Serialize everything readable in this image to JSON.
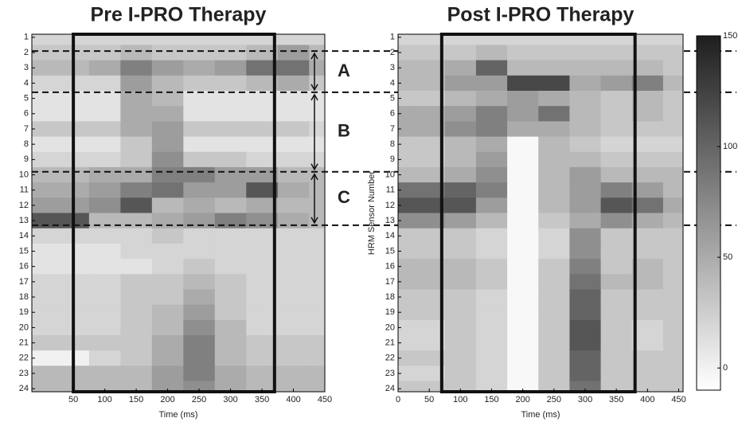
{
  "chart_data": [
    {
      "type": "heatmap",
      "title": "Pre I-PRO Therapy",
      "xlabel": "Time (ms)",
      "x": [
        0,
        50,
        100,
        150,
        200,
        250,
        300,
        350,
        400,
        450
      ],
      "y": [
        1,
        2,
        3,
        4,
        5,
        6,
        7,
        8,
        9,
        10,
        11,
        12,
        13,
        14,
        15,
        16,
        17,
        18,
        19,
        20,
        21,
        22,
        23,
        24
      ],
      "z": [
        [
          20,
          20,
          20,
          20,
          20,
          20,
          20,
          20,
          20,
          20
        ],
        [
          30,
          30,
          30,
          40,
          30,
          30,
          30,
          40,
          60,
          40
        ],
        [
          40,
          40,
          50,
          80,
          60,
          50,
          60,
          90,
          90,
          50
        ],
        [
          20,
          20,
          20,
          60,
          40,
          30,
          30,
          40,
          50,
          30
        ],
        [
          10,
          10,
          10,
          50,
          40,
          10,
          10,
          10,
          10,
          10
        ],
        [
          10,
          10,
          10,
          50,
          50,
          10,
          10,
          10,
          10,
          10
        ],
        [
          30,
          30,
          30,
          50,
          60,
          30,
          30,
          30,
          30,
          20
        ],
        [
          10,
          10,
          10,
          30,
          60,
          10,
          10,
          10,
          10,
          10
        ],
        [
          20,
          20,
          20,
          30,
          70,
          30,
          30,
          20,
          20,
          20
        ],
        [
          40,
          40,
          50,
          50,
          80,
          80,
          60,
          60,
          40,
          40
        ],
        [
          50,
          50,
          60,
          80,
          90,
          60,
          60,
          110,
          50,
          40
        ],
        [
          60,
          60,
          70,
          110,
          40,
          50,
          40,
          50,
          40,
          40
        ],
        [
          110,
          110,
          40,
          40,
          50,
          60,
          80,
          70,
          50,
          40
        ],
        [
          20,
          20,
          20,
          20,
          30,
          20,
          20,
          20,
          20,
          20
        ],
        [
          10,
          10,
          10,
          20,
          20,
          20,
          20,
          20,
          20,
          20
        ],
        [
          10,
          10,
          10,
          10,
          20,
          30,
          20,
          20,
          20,
          20
        ],
        [
          20,
          20,
          20,
          30,
          30,
          40,
          30,
          20,
          20,
          20
        ],
        [
          20,
          20,
          20,
          30,
          30,
          50,
          30,
          20,
          20,
          20
        ],
        [
          20,
          20,
          20,
          30,
          40,
          60,
          30,
          20,
          20,
          20
        ],
        [
          20,
          20,
          20,
          30,
          40,
          70,
          40,
          20,
          20,
          20
        ],
        [
          30,
          30,
          30,
          30,
          50,
          80,
          40,
          30,
          30,
          30
        ],
        [
          0,
          0,
          20,
          30,
          50,
          80,
          40,
          30,
          30,
          30
        ],
        [
          40,
          40,
          40,
          40,
          60,
          80,
          50,
          40,
          40,
          40
        ],
        [
          40,
          40,
          40,
          40,
          60,
          70,
          50,
          40,
          40,
          40
        ]
      ],
      "xlim": [
        -16,
        450
      ],
      "xticks": [
        50,
        100,
        150,
        200,
        250,
        300,
        350,
        400,
        450
      ],
      "ylim": [
        24.2,
        0.8
      ],
      "yticks": [
        1,
        2,
        3,
        4,
        5,
        6,
        7,
        8,
        9,
        10,
        11,
        12,
        13,
        14,
        15,
        16,
        17,
        18,
        19,
        20,
        21,
        22,
        23,
        24
      ],
      "box": [
        50,
        370
      ],
      "hlines": [
        1.9,
        4.6,
        9.8,
        13.3
      ],
      "brackets": [
        {
          "label": "A",
          "range": [
            1.9,
            4.6
          ]
        },
        {
          "label": "B",
          "range": [
            4.6,
            9.8
          ]
        },
        {
          "label": "C",
          "range": [
            9.8,
            13.3
          ]
        }
      ]
    },
    {
      "type": "heatmap",
      "title": "Post I-PRO Therapy",
      "xlabel": "Time (ms)",
      "ylabel": "HRM Sensor Number",
      "x": [
        0,
        50,
        100,
        150,
        200,
        250,
        300,
        350,
        400,
        450
      ],
      "y": [
        1,
        2,
        3,
        4,
        5,
        6,
        7,
        8,
        9,
        10,
        11,
        12,
        13,
        14,
        15,
        16,
        17,
        18,
        19,
        20,
        21,
        22,
        23,
        24
      ],
      "z": [
        [
          20,
          20,
          20,
          20,
          20,
          20,
          20,
          20,
          20,
          20
        ],
        [
          30,
          30,
          30,
          40,
          30,
          30,
          30,
          30,
          30,
          30
        ],
        [
          40,
          40,
          50,
          100,
          40,
          40,
          40,
          40,
          40,
          30
        ],
        [
          40,
          40,
          60,
          60,
          120,
          120,
          50,
          60,
          80,
          40
        ],
        [
          30,
          30,
          40,
          50,
          60,
          50,
          40,
          30,
          40,
          30
        ],
        [
          50,
          50,
          60,
          80,
          60,
          90,
          40,
          30,
          40,
          30
        ],
        [
          50,
          50,
          70,
          80,
          50,
          50,
          40,
          30,
          30,
          30
        ],
        [
          30,
          30,
          40,
          50,
          -5,
          40,
          30,
          20,
          20,
          20
        ],
        [
          30,
          30,
          40,
          60,
          -5,
          40,
          40,
          30,
          30,
          30
        ],
        [
          40,
          40,
          50,
          70,
          -5,
          40,
          60,
          40,
          40,
          40
        ],
        [
          90,
          90,
          100,
          80,
          -5,
          40,
          60,
          80,
          60,
          40
        ],
        [
          110,
          110,
          110,
          60,
          -5,
          40,
          60,
          110,
          90,
          50
        ],
        [
          70,
          70,
          60,
          40,
          -5,
          30,
          50,
          70,
          50,
          40
        ],
        [
          30,
          30,
          30,
          20,
          -5,
          20,
          70,
          30,
          30,
          30
        ],
        [
          30,
          30,
          30,
          20,
          -5,
          20,
          70,
          30,
          30,
          30
        ],
        [
          40,
          40,
          40,
          30,
          -5,
          30,
          80,
          30,
          40,
          30
        ],
        [
          40,
          40,
          40,
          30,
          -5,
          30,
          90,
          40,
          40,
          30
        ],
        [
          30,
          30,
          30,
          20,
          -5,
          30,
          100,
          30,
          30,
          30
        ],
        [
          30,
          30,
          30,
          20,
          -5,
          30,
          100,
          30,
          30,
          30
        ],
        [
          20,
          20,
          30,
          20,
          -5,
          30,
          110,
          30,
          20,
          30
        ],
        [
          20,
          20,
          30,
          20,
          -5,
          30,
          110,
          30,
          20,
          30
        ],
        [
          30,
          30,
          30,
          20,
          -5,
          30,
          100,
          30,
          30,
          30
        ],
        [
          20,
          20,
          30,
          20,
          -5,
          30,
          100,
          30,
          30,
          30
        ],
        [
          30,
          30,
          30,
          20,
          -5,
          30,
          90,
          30,
          30,
          30
        ]
      ],
      "xlim": [
        0,
        457
      ],
      "xticks": [
        0,
        50,
        100,
        150,
        200,
        250,
        300,
        350,
        400,
        450
      ],
      "ylim": [
        24.2,
        0.8
      ],
      "yticks": [
        1,
        2,
        3,
        4,
        5,
        6,
        7,
        8,
        9,
        10,
        11,
        12,
        13,
        14,
        15,
        16,
        17,
        18,
        19,
        20,
        21,
        22,
        23,
        24
      ],
      "box": [
        70,
        380
      ],
      "colorbar": {
        "lim": [
          -10,
          150
        ],
        "ticks": [
          0,
          50,
          100,
          150
        ]
      }
    }
  ]
}
